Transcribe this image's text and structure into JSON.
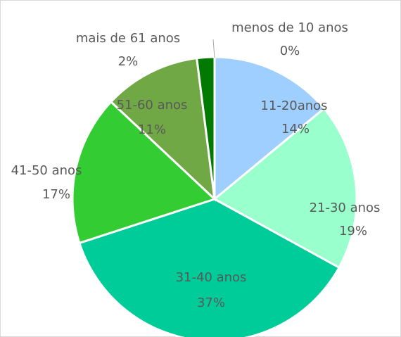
{
  "chart_data": {
    "type": "pie",
    "categories": [
      "menos de 10 anos",
      "11-20anos",
      "21-30 anos",
      "31-40 anos",
      "41-50 anos",
      "51-60 anos",
      "mais de 61 anos"
    ],
    "values": [
      0,
      14,
      19,
      37,
      17,
      11,
      2
    ],
    "value_labels": [
      "0%",
      "14%",
      "19%",
      "37%",
      "17%",
      "11%",
      "2%"
    ],
    "colors": [
      "#9fcfff",
      "#9fcfff",
      "#99ffcc",
      "#00cc99",
      "#33cc33",
      "#70a845",
      "#007a00"
    ]
  }
}
